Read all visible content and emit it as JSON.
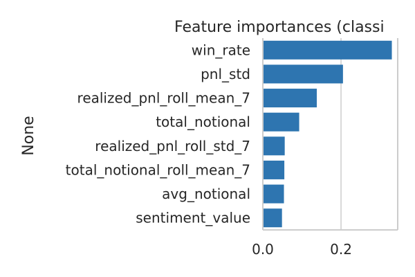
{
  "chart_data": {
    "type": "bar",
    "orientation": "horizontal",
    "title": "Feature importances (classi",
    "ylabel": "None",
    "xlabel": "",
    "categories": [
      "win_rate",
      "pnl_std",
      "realized_pnl_roll_mean_7",
      "total_notional",
      "realized_pnl_roll_std_7",
      "total_notional_roll_mean_7",
      "avg_notional",
      "sentiment_value"
    ],
    "values": [
      0.33,
      0.205,
      0.138,
      0.093,
      0.056,
      0.055,
      0.054,
      0.049
    ],
    "xlim": [
      0,
      0.345
    ],
    "x_ticks": [
      0.0,
      0.2
    ],
    "x_tick_labels": [
      "0.0",
      "0.2"
    ],
    "grid": "vertical",
    "bar_color": "#2e75b0"
  }
}
